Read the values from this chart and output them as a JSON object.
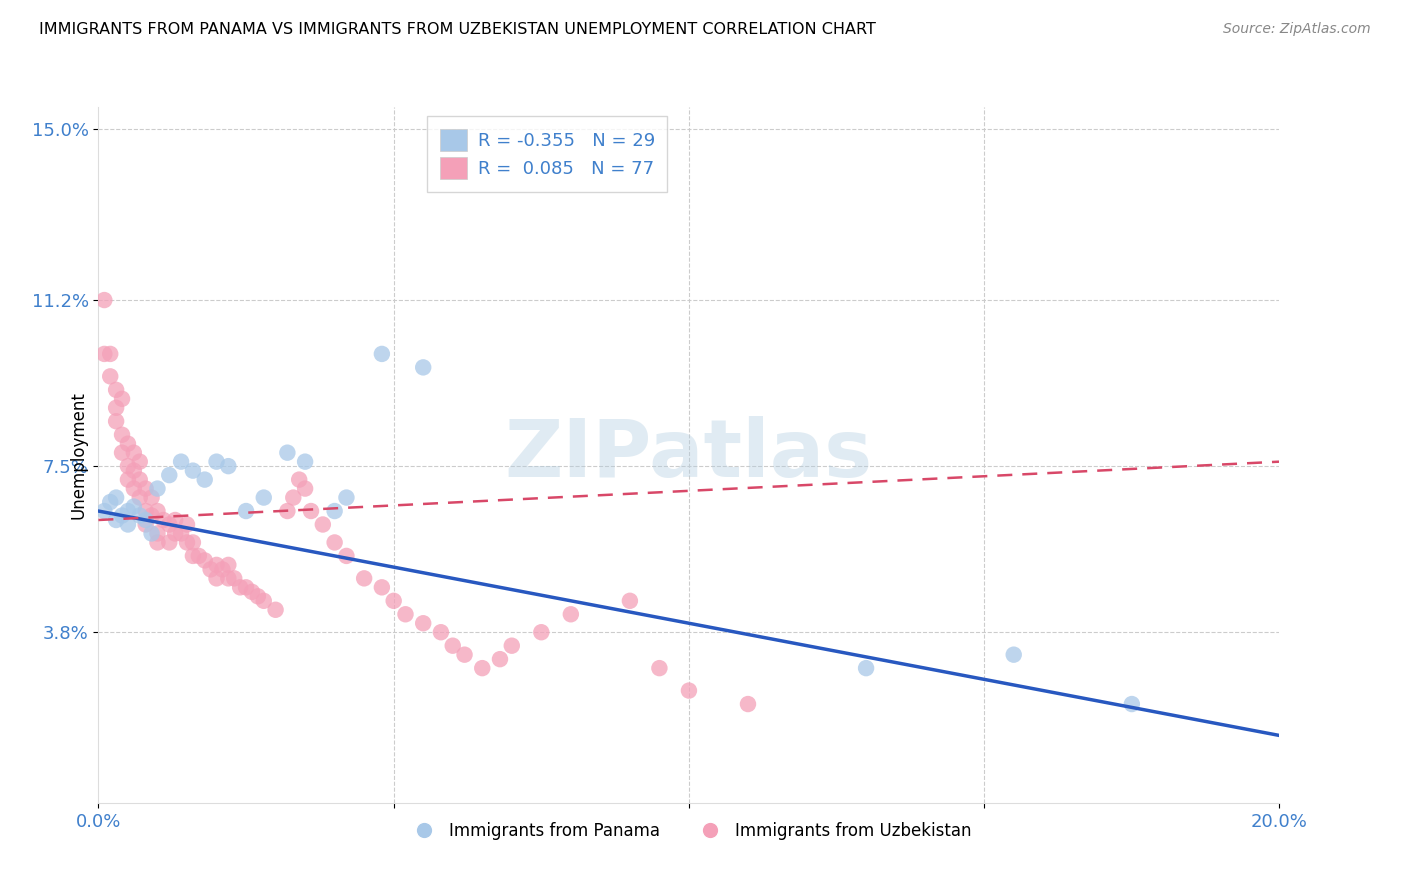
{
  "title": "IMMIGRANTS FROM PANAMA VS IMMIGRANTS FROM UZBEKISTAN UNEMPLOYMENT CORRELATION CHART",
  "source": "Source: ZipAtlas.com",
  "ylabel": "Unemployment",
  "xlim": [
    0.0,
    0.2
  ],
  "ylim": [
    0.0,
    0.155
  ],
  "yticks": [
    0.038,
    0.075,
    0.112,
    0.15
  ],
  "ytick_labels": [
    "3.8%",
    "7.5%",
    "11.2%",
    "15.0%"
  ],
  "xticks": [
    0.0,
    0.05,
    0.1,
    0.15,
    0.2
  ],
  "xtick_labels": [
    "0.0%",
    "",
    "",
    "",
    "20.0%"
  ],
  "panama_color": "#a8c8e8",
  "uzbekistan_color": "#f4a0b8",
  "panama_line_color": "#2858c0",
  "uzbekistan_line_color": "#d84868",
  "panama_R": -0.355,
  "panama_N": 29,
  "uzbekistan_R": 0.085,
  "uzbekistan_N": 77,
  "watermark": "ZIPatlas",
  "panama_trend_start": 0.065,
  "panama_trend_end": 0.015,
  "uzbekistan_trend_start": 0.063,
  "uzbekistan_trend_end": 0.076,
  "panama_scatter_x": [
    0.001,
    0.002,
    0.003,
    0.003,
    0.004,
    0.005,
    0.005,
    0.006,
    0.007,
    0.008,
    0.009,
    0.01,
    0.012,
    0.014,
    0.016,
    0.018,
    0.02,
    0.022,
    0.025,
    0.028,
    0.032,
    0.035,
    0.04,
    0.042,
    0.048,
    0.055,
    0.13,
    0.155,
    0.175
  ],
  "panama_scatter_y": [
    0.065,
    0.067,
    0.063,
    0.068,
    0.064,
    0.062,
    0.065,
    0.066,
    0.064,
    0.063,
    0.06,
    0.07,
    0.073,
    0.076,
    0.074,
    0.072,
    0.076,
    0.075,
    0.065,
    0.068,
    0.078,
    0.076,
    0.065,
    0.068,
    0.1,
    0.097,
    0.03,
    0.033,
    0.022
  ],
  "uzbekistan_scatter_x": [
    0.001,
    0.001,
    0.002,
    0.002,
    0.003,
    0.003,
    0.003,
    0.004,
    0.004,
    0.004,
    0.005,
    0.005,
    0.005,
    0.006,
    0.006,
    0.006,
    0.007,
    0.007,
    0.007,
    0.008,
    0.008,
    0.008,
    0.009,
    0.009,
    0.01,
    0.01,
    0.01,
    0.011,
    0.012,
    0.012,
    0.013,
    0.013,
    0.014,
    0.015,
    0.015,
    0.016,
    0.016,
    0.017,
    0.018,
    0.019,
    0.02,
    0.02,
    0.021,
    0.022,
    0.022,
    0.023,
    0.024,
    0.025,
    0.026,
    0.027,
    0.028,
    0.03,
    0.032,
    0.033,
    0.034,
    0.035,
    0.036,
    0.038,
    0.04,
    0.042,
    0.045,
    0.048,
    0.05,
    0.052,
    0.055,
    0.058,
    0.06,
    0.062,
    0.065,
    0.068,
    0.07,
    0.075,
    0.08,
    0.09,
    0.095,
    0.1,
    0.11
  ],
  "uzbekistan_scatter_y": [
    0.112,
    0.1,
    0.095,
    0.1,
    0.088,
    0.092,
    0.085,
    0.09,
    0.082,
    0.078,
    0.08,
    0.075,
    0.072,
    0.078,
    0.074,
    0.07,
    0.076,
    0.072,
    0.068,
    0.07,
    0.065,
    0.062,
    0.068,
    0.064,
    0.065,
    0.06,
    0.058,
    0.063,
    0.062,
    0.058,
    0.063,
    0.06,
    0.06,
    0.062,
    0.058,
    0.058,
    0.055,
    0.055,
    0.054,
    0.052,
    0.053,
    0.05,
    0.052,
    0.05,
    0.053,
    0.05,
    0.048,
    0.048,
    0.047,
    0.046,
    0.045,
    0.043,
    0.065,
    0.068,
    0.072,
    0.07,
    0.065,
    0.062,
    0.058,
    0.055,
    0.05,
    0.048,
    0.045,
    0.042,
    0.04,
    0.038,
    0.035,
    0.033,
    0.03,
    0.032,
    0.035,
    0.038,
    0.042,
    0.045,
    0.03,
    0.025,
    0.022
  ]
}
